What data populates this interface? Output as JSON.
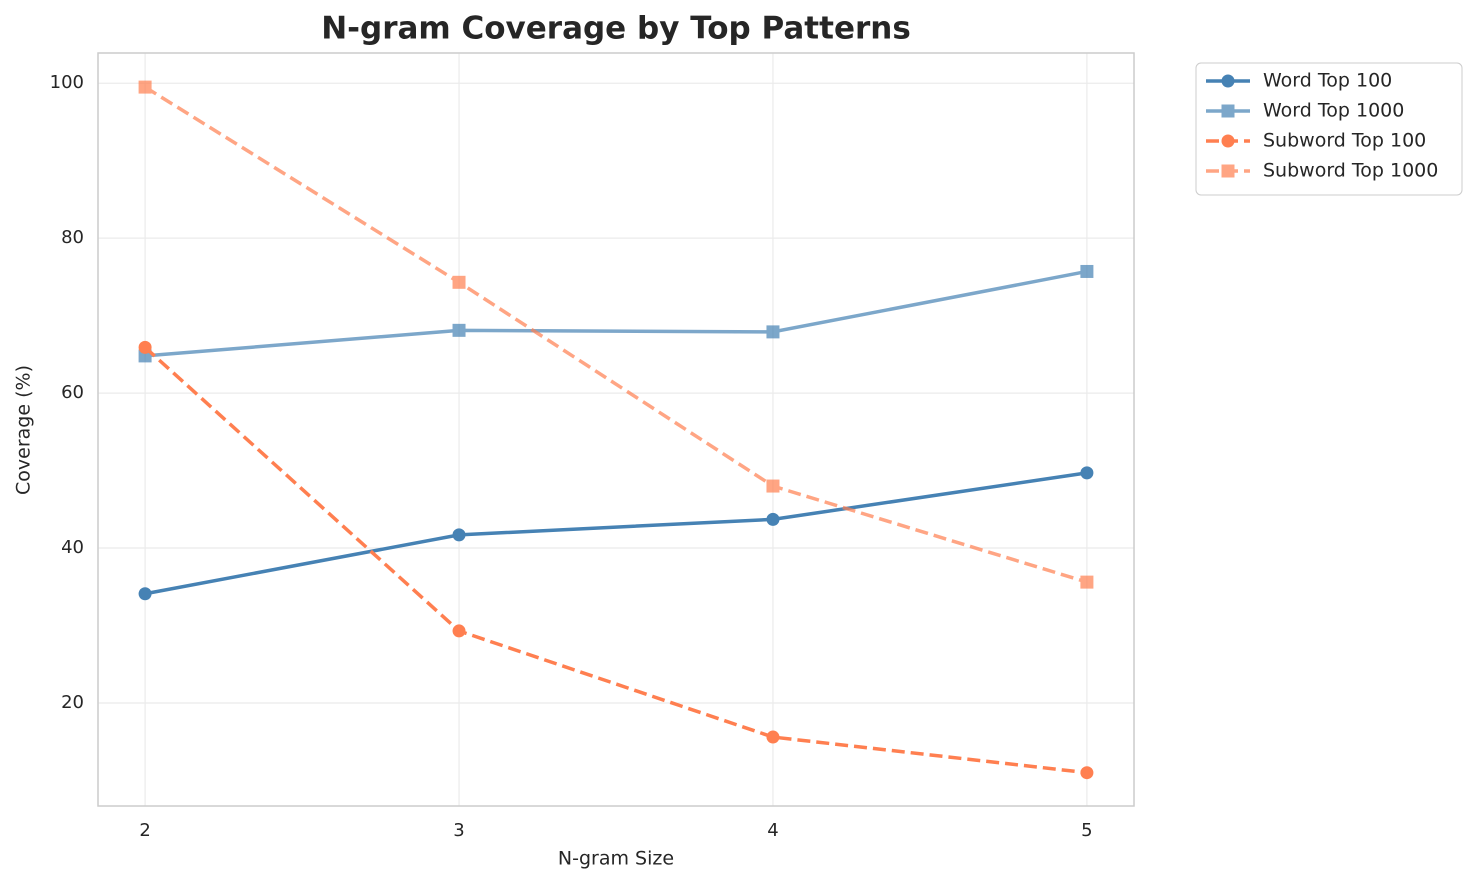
{
  "chart_data": {
    "type": "line",
    "title": "N-gram Coverage by Top Patterns",
    "xlabel": "N-gram Size",
    "ylabel": "Coverage (%)",
    "x": [
      2,
      3,
      4,
      5
    ],
    "series": [
      {
        "name": "Word Top 100",
        "color": "#4682b4",
        "marker": "circle",
        "linestyle": "solid",
        "opacity": 1,
        "values": [
          34.1,
          41.7,
          43.7,
          49.7
        ]
      },
      {
        "name": "Word Top 1000",
        "color": "#4682b4",
        "marker": "square",
        "linestyle": "solid",
        "opacity": 0.7,
        "values": [
          64.8,
          68.1,
          67.9,
          75.7
        ]
      },
      {
        "name": "Subword Top 100",
        "color": "#ff7f50",
        "marker": "circle",
        "linestyle": "dashed",
        "opacity": 1,
        "values": [
          65.9,
          29.3,
          15.6,
          11.0
        ]
      },
      {
        "name": "Subword Top 1000",
        "color": "#ff7f50",
        "marker": "square",
        "linestyle": "dashed",
        "opacity": 0.7,
        "values": [
          99.5,
          74.3,
          48.0,
          35.6
        ]
      }
    ],
    "xlim": [
      1.85,
      5.15
    ],
    "xticks": [
      2,
      3,
      4,
      5
    ],
    "ylim": [
      6.7,
      103.9
    ],
    "yticks": [
      20,
      40,
      60,
      80,
      100
    ],
    "grid": true,
    "legend": "outside upper right"
  }
}
